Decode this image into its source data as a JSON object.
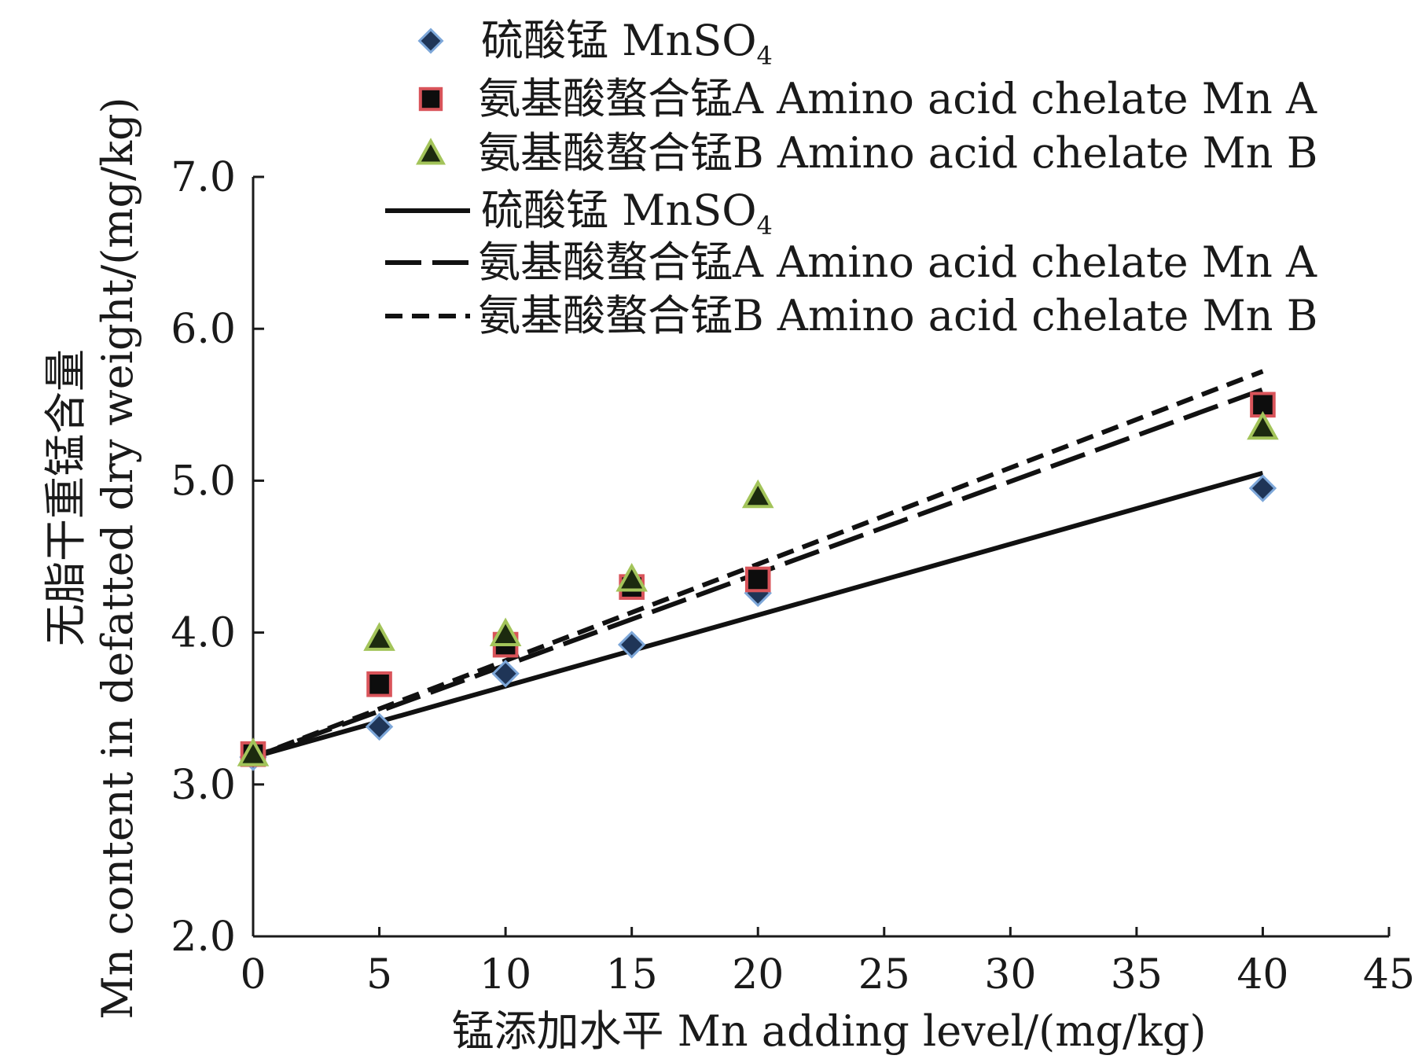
{
  "colors": {
    "axis": "#1a1a1a",
    "line": "#111111",
    "diamond_fill": "#1f3557",
    "diamond_stroke": "#7da7d9",
    "square_fill": "#0d0d0d",
    "square_stroke": "#d9545a",
    "triangle_fill": "#1c2a0f",
    "triangle_stroke": "#a3c45a"
  },
  "chart_data": {
    "type": "scatter",
    "xlabel": "锰添加水平 Mn adding level/(mg/kg)",
    "ylabel_zh": "无脂干重锰含量",
    "ylabel_en": "Mn content in defatted dry weight/(mg/kg)",
    "xlim": [
      0,
      45
    ],
    "ylim": [
      2.0,
      7.0
    ],
    "x_ticks": [
      0,
      5,
      10,
      15,
      20,
      25,
      30,
      35,
      40,
      45
    ],
    "y_ticks": [
      2.0,
      3.0,
      4.0,
      5.0,
      6.0,
      7.0
    ],
    "x_tick_labels": [
      "0",
      "5",
      "10",
      "15",
      "20",
      "25",
      "30",
      "35",
      "40",
      "45"
    ],
    "y_tick_labels": [
      "2.0",
      "3.0",
      "4.0",
      "5.0",
      "6.0",
      "7.0"
    ],
    "grid": false,
    "legend_position": "top",
    "series": [
      {
        "name": "硫酸锰 MnSO4",
        "marker": "diamond",
        "x": [
          0,
          5,
          10,
          15,
          20,
          40
        ],
        "y": [
          3.18,
          3.38,
          3.73,
          3.92,
          4.26,
          4.95
        ]
      },
      {
        "name": "氨基酸螯合锰A Amino acid chelate Mn A",
        "marker": "square",
        "x": [
          0,
          5,
          10,
          15,
          20,
          40
        ],
        "y": [
          3.2,
          3.66,
          3.92,
          4.3,
          4.35,
          5.5
        ]
      },
      {
        "name": "氨基酸螯合锰B Amino acid chelate Mn B",
        "marker": "triangle",
        "x": [
          0,
          5,
          10,
          15,
          20,
          40
        ],
        "y": [
          3.2,
          3.96,
          3.99,
          4.35,
          4.9,
          5.35
        ]
      }
    ],
    "trendlines": [
      {
        "name": "硫酸锰 MnSO4",
        "style": "solid",
        "x": [
          0,
          40
        ],
        "y": [
          3.18,
          5.05
        ]
      },
      {
        "name": "氨基酸螯合锰A Amino acid chelate Mn A",
        "style": "long-dash",
        "x": [
          0,
          40
        ],
        "y": [
          3.18,
          5.6
        ]
      },
      {
        "name": "氨基酸螯合锰B Amino acid chelate Mn B",
        "style": "short-dash",
        "x": [
          0,
          40
        ],
        "y": [
          3.18,
          5.72
        ]
      }
    ],
    "legend": {
      "marker_entries": [
        {
          "prefix": "硫酸锰 MnSO",
          "subscript": "4",
          "marker": "diamond"
        },
        {
          "prefix": "氨基酸螯合锰A Amino acid chelate Mn A",
          "subscript": "",
          "marker": "square"
        },
        {
          "prefix": "氨基酸螯合锰B Amino acid chelate Mn B",
          "subscript": "",
          "marker": "triangle"
        }
      ],
      "line_entries": [
        {
          "prefix": "硫酸锰 MnSO",
          "subscript": "4",
          "style": "solid"
        },
        {
          "prefix": "氨基酸螯合锰A Amino acid chelate Mn A",
          "subscript": "",
          "style": "long-dash"
        },
        {
          "prefix": "氨基酸螯合锰B Amino acid chelate Mn B",
          "subscript": "",
          "style": "short-dash"
        }
      ]
    }
  }
}
